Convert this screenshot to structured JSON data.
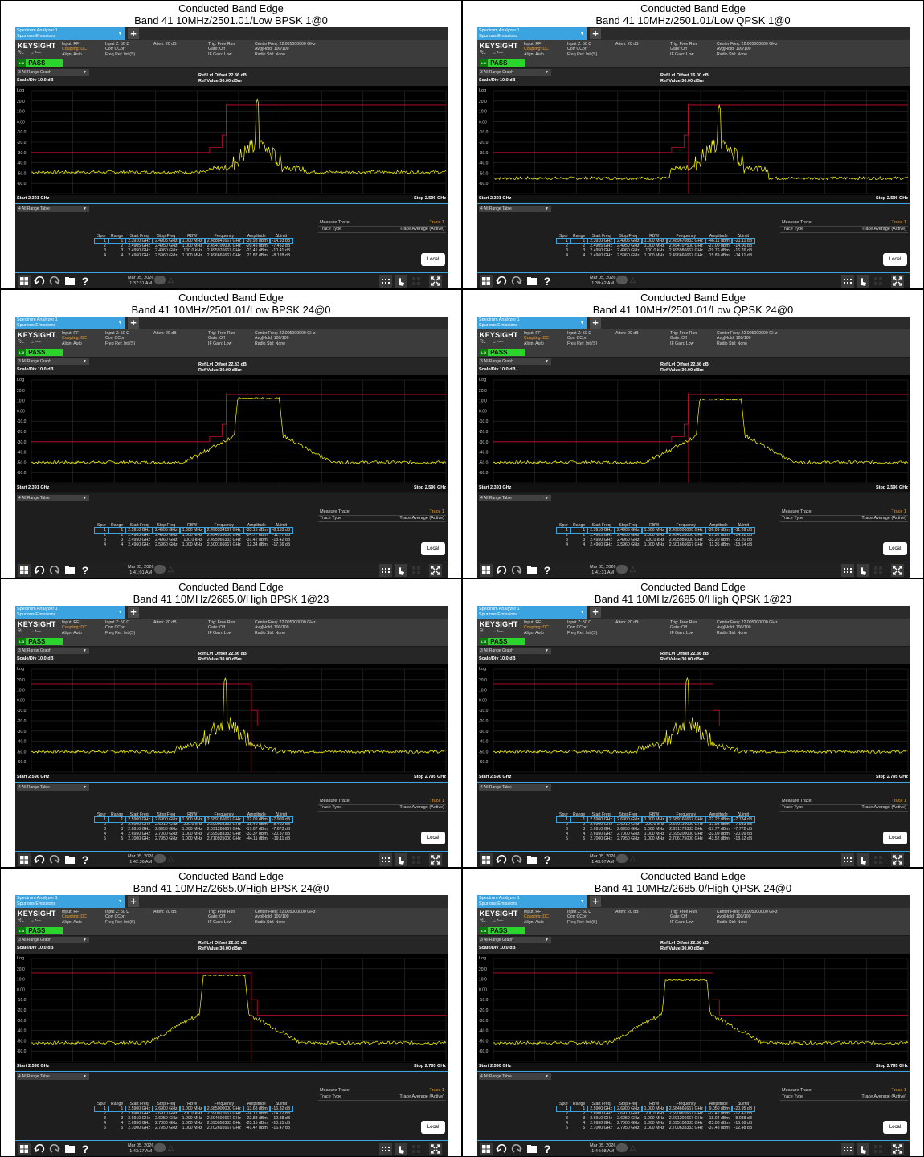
{
  "common": {
    "caption_title": "Conducted Band Edge",
    "tab_line1": "Spectrum Analyzer 1",
    "tab_line2": "Spurious Emissions",
    "plus_label": "+",
    "logo": "KEYSIGHT",
    "rl_label": "RL",
    "rl_arrow": "→•—",
    "pass_lxi": "LXI",
    "pass_label": "PASS",
    "hdr_col1": [
      "Input: RF",
      "Coupling: DC",
      "Align: Auto"
    ],
    "hdr_col2": [
      "Input Z: 50 Ω",
      "Corr CCorr",
      "Freq Ref: Int (S)"
    ],
    "hdr_col3": [
      "Atten: 20 dB"
    ],
    "hdr_col4": [
      "Trig: Free Run",
      "Gate: Off",
      "IF Gain: Low"
    ],
    "hdr_col5": [
      "Center Freq: 22.005000000 GHz",
      "Avg|Hold: 100/100",
      "Radio Std: None"
    ],
    "graph_dropdown": "3 All Range Graph",
    "scale_div": "Scale/Div 10.0 dB",
    "log_label": "Log",
    "y_ticks": [
      "20.0",
      "10.0",
      "0.00",
      "-10.0",
      "-20.0",
      "-30.0",
      "-40.0",
      "-50.0",
      "-60.0"
    ],
    "ref_value": "Ref Value 30.00 dBm",
    "table_dropdown": "4 All Range Table",
    "measure_trace_label": "Measure Trace",
    "measure_trace_value": "Trace 1",
    "trace_type_label": "Trace Type",
    "trace_type_value": "Trace Average (Active)",
    "spur_headers": [
      "Spur",
      "Range",
      "Start Freq",
      "Stop Freq",
      "RBW",
      "Frequency",
      "Amplitude",
      "ΔLimit"
    ],
    "local_button": "Local",
    "icons": [
      "windows-icon",
      "undo-icon",
      "redo-icon",
      "folder-icon",
      "help-icon",
      "keyboard-icon",
      "touch-icon",
      "grid-icon",
      "fullscreen-icon"
    ],
    "colors": {
      "trace": "#ffff00",
      "limit": "#c8102e",
      "pass": "#2bd52b",
      "accent": "#3aa3e0"
    }
  },
  "panels": [
    {
      "caption": "Band 41 10MHz/2501.01/Low BPSK 1@0",
      "ref_offset": "Ref Lvl Offset 22.86 dB",
      "start": "Start 2.391 GHz",
      "stop": "Stop 2.596 GHz",
      "date": "Mar 05, 2026",
      "time": "1:37:31 AM",
      "spurs": [
        [
          "1",
          "1",
          "2.3910 GHz",
          "2.4905 GHz",
          "1.000 MHz",
          "2.488841667 GHz",
          "-39.93 dBm",
          "-14.93 dB"
        ],
        [
          "2",
          "2",
          "2.4905 GHz",
          "2.4950 GHz",
          "1.000 MHz",
          "2.494700000 GHz",
          "-20.45 dBm",
          "-7.452 dB"
        ],
        [
          "3",
          "3",
          "2.4950 GHz",
          "2.4960 GHz",
          "100.0 kHz",
          "2.495976667 GHz",
          "-23.41 dBm",
          "-10.41 dB"
        ],
        [
          "4",
          "4",
          "2.4960 GHz",
          "2.5960 GHz",
          "1.000 MHz",
          "2.496666667 GHz",
          "21.87 dBm",
          "-8.128 dB"
        ]
      ],
      "chart_data": {
        "type": "line",
        "side": "low",
        "shape": "narrow",
        "peak_dbm": 21.87,
        "noise_dbm": -49,
        "x_range_ghz": [
          2.391,
          2.596
        ],
        "y_range_dbm": [
          -70,
          30
        ]
      }
    },
    {
      "caption": "Band 41 10MHz/2501.01/Low QPSK 1@0",
      "ref_offset": "Ref Lvl Offset 16.00 dB",
      "start": "Start 2.391 GHz",
      "stop": "Stop 2.596 GHz",
      "date": "Mar 05, 2026",
      "time": "1:39:42 AM",
      "spurs": [
        [
          "1",
          "1",
          "2.3910 GHz",
          "2.4905 GHz",
          "1.000 MHz",
          "2.489670833 GHz",
          "-46.11 dBm",
          "-21.11 dB"
        ],
        [
          "2",
          "2",
          "2.4905 GHz",
          "2.4950 GHz",
          "1.000 MHz",
          "2.494707500 GHz",
          "-27.00 dBm",
          "-14.00 dB"
        ],
        [
          "3",
          "3",
          "2.4950 GHz",
          "2.4960 GHz",
          "100.0 kHz",
          "2.495986667 GHz",
          "-29.76 dBm",
          "-16.76 dB"
        ],
        [
          "4",
          "4",
          "2.4960 GHz",
          "2.5960 GHz",
          "1.000 MHz",
          "2.496666667 GHz",
          "15.89 dBm",
          "-14.11 dB"
        ]
      ],
      "chart_data": {
        "type": "line",
        "side": "low",
        "shape": "narrow",
        "peak_dbm": 15.89,
        "noise_dbm": -55,
        "x_range_ghz": [
          2.391,
          2.596
        ],
        "y_range_dbm": [
          -70,
          30
        ]
      }
    },
    {
      "caption": "Band 41 10MHz/2501.01/Low BPSK 24@0",
      "ref_offset": "Ref Lvl Offset 22.83 dB",
      "start": "Start 2.391 GHz",
      "stop": "Stop 2.596 GHz",
      "date": "Mar 05, 2026",
      "time": "1:41:01 AM",
      "spurs": [
        [
          "1",
          "1",
          "2.3910 GHz",
          "2.4905 GHz",
          "1.000 MHz",
          "2.490334167 GHz",
          "-33.15 dBm",
          "-8.153 dB"
        ],
        [
          "2",
          "2",
          "2.4905 GHz",
          "2.4950 GHz",
          "1.000 MHz",
          "2.494910000 GHz",
          "-24.77 dBm",
          "-11.77 dB"
        ],
        [
          "3",
          "3",
          "2.4950 GHz",
          "2.4960 GHz",
          "100.0 kHz",
          "2.495966333 GHz",
          "-31.42 dBm",
          "-18.42 dB"
        ],
        [
          "4",
          "4",
          "2.4960 GHz",
          "2.5960 GHz",
          "1.000 MHz",
          "2.500166667 GHz",
          "12.34 dBm",
          "-17.66 dB"
        ]
      ],
      "chart_data": {
        "type": "line",
        "side": "low",
        "shape": "wide",
        "peak_dbm": 12.34,
        "noise_dbm": -50,
        "x_range_ghz": [
          2.391,
          2.596
        ],
        "y_range_dbm": [
          -70,
          30
        ]
      }
    },
    {
      "caption": "Band 41 10MHz/2501.01/Low QPSK 24@0",
      "ref_offset": "Ref Lvl Offset 22.86 dB",
      "start": "Start 2.391 GHz",
      "stop": "Stop 2.596 GHz",
      "date": "Mar 05, 2026",
      "time": "1:41:31 AM",
      "spurs": [
        [
          "1",
          "1",
          "2.3910 GHz",
          "2.4905 GHz",
          "1.000 MHz",
          "2.490500000 GHz",
          "-36.09 dBm",
          "-11.09 dB"
        ],
        [
          "2",
          "2",
          "2.4905 GHz",
          "2.4950 GHz",
          "1.000 MHz",
          "2.494235000 GHz",
          "-27.92 dBm",
          "-14.92 dB"
        ],
        [
          "3",
          "3",
          "2.4950 GHz",
          "2.4960 GHz",
          "100.0 kHz",
          "2.495985000 GHz",
          "-33.20 dBm",
          "-20.20 dB"
        ],
        [
          "4",
          "4",
          "2.4960 GHz",
          "2.5960 GHz",
          "1.000 MHz",
          "2.501666667 GHz",
          "11.36 dBm",
          "-18.64 dB"
        ]
      ],
      "chart_data": {
        "type": "line",
        "side": "low",
        "shape": "wide",
        "peak_dbm": 11.36,
        "noise_dbm": -50,
        "x_range_ghz": [
          2.391,
          2.596
        ],
        "y_range_dbm": [
          -70,
          30
        ]
      }
    },
    {
      "caption": "Band 41 10MHz/2685.0/High BPSK 1@23",
      "ref_offset": "Ref Lvl Offset 22.86 dB",
      "start": "Start 2.590 GHz",
      "stop": "Stop 2.795 GHz",
      "date": "Mar 05, 2026",
      "time": "1:42:36 AM",
      "spurs": [
        [
          "1",
          "1",
          "2.5900 GHz",
          "2.6900 GHz",
          "1.000 MHz",
          "2.689166667 GHz",
          "22.09 dBm",
          "-7.909 dB"
        ],
        [
          "2",
          "2",
          "2.6900 GHz",
          "2.6910 GHz",
          "200.0 kHz",
          "2.690003333 GHz",
          "-18.40 dBm",
          "-8.402 dB"
        ],
        [
          "3",
          "3",
          "2.6910 GHz",
          "2.6950 GHz",
          "1.000 MHz",
          "2.691286667 GHz",
          "-17.67 dBm",
          "-7.673 dB"
        ],
        [
          "4",
          "4",
          "2.6950 GHz",
          "2.7000 GHz",
          "1.000 MHz",
          "2.695383333 GHz",
          "-33.37 dBm",
          "-20.37 dB"
        ],
        [
          "5",
          "5",
          "2.7000 GHz",
          "2.7950 GHz",
          "1.000 MHz",
          "2.710925000 GHz",
          "-44.11 dBm",
          "-19.11 dB"
        ]
      ],
      "chart_data": {
        "type": "line",
        "side": "high",
        "shape": "narrow",
        "peak_dbm": 22.09,
        "noise_dbm": -50,
        "x_range_ghz": [
          2.59,
          2.795
        ],
        "y_range_dbm": [
          -70,
          30
        ]
      }
    },
    {
      "caption": "Band 41 10MHz/2685.0/High QPSK 1@23",
      "ref_offset": "Ref Lvl Offset 22.86 dB",
      "start": "Start 2.590 GHz",
      "stop": "Stop 2.795 GHz",
      "date": "Mar 05, 2026",
      "time": "1:43:07 AM",
      "spurs": [
        [
          "1",
          "1",
          "2.5900 GHz",
          "2.6900 GHz",
          "1.000 MHz",
          "2.689166667 GHz",
          "22.22 dBm",
          "-7.784 dB"
        ],
        [
          "2",
          "2",
          "2.6900 GHz",
          "2.6910 GHz",
          "200.0 kHz",
          "2.690110000 GHz",
          "-17.93 dBm",
          "-7.933 dB"
        ],
        [
          "3",
          "3",
          "2.6910 GHz",
          "2.6950 GHz",
          "1.000 MHz",
          "2.691173333 GHz",
          "-17.77 dBm",
          "-7.772 dB"
        ],
        [
          "4",
          "4",
          "2.6950 GHz",
          "2.7000 GHz",
          "1.000 MHz",
          "2.695200000 GHz",
          "-33.09 dBm",
          "-20.09 dB"
        ],
        [
          "5",
          "5",
          "2.7000 GHz",
          "2.7950 GHz",
          "1.000 MHz",
          "2.706175000 GHz",
          "-43.52 dBm",
          "-18.52 dB"
        ]
      ],
      "chart_data": {
        "type": "line",
        "side": "high",
        "shape": "narrow",
        "peak_dbm": 22.22,
        "noise_dbm": -50,
        "x_range_ghz": [
          2.59,
          2.795
        ],
        "y_range_dbm": [
          -70,
          30
        ]
      }
    },
    {
      "caption": "Band 41 10MHz/2685.0/High BPSK 24@0",
      "ref_offset": "Ref Lvl Offset 22.83 dB",
      "start": "Start 2.590 GHz",
      "stop": "Stop 2.795 GHz",
      "date": "Mar 05, 2026",
      "time": "1:43:37 AM",
      "spurs": [
        [
          "1",
          "1",
          "2.5900 GHz",
          "2.6900 GHz",
          "1.000 MHz",
          "2.685000000 GHz",
          "13.68 dBm",
          "-16.32 dB"
        ],
        [
          "2",
          "2",
          "2.6900 GHz",
          "2.6910 GHz",
          "200.0 kHz",
          "2.690021667 GHz",
          "-24.12 dBm",
          "-14.12 dB"
        ],
        [
          "3",
          "3",
          "2.6910 GHz",
          "2.6950 GHz",
          "1.000 MHz",
          "2.694606667 GHz",
          "-22.88 dBm",
          "-12.88 dB"
        ],
        [
          "4",
          "4",
          "2.6950 GHz",
          "2.7000 GHz",
          "1.000 MHz",
          "2.695058333 GHz",
          "-23.15 dBm",
          "-10.15 dB"
        ],
        [
          "5",
          "5",
          "2.7000 GHz",
          "2.7950 GHz",
          "1.000 MHz",
          "2.702691667 GHz",
          "-41.47 dBm",
          "-16.47 dB"
        ]
      ],
      "chart_data": {
        "type": "line",
        "side": "high",
        "shape": "wide",
        "peak_dbm": 13.68,
        "noise_dbm": -52,
        "x_range_ghz": [
          2.59,
          2.795
        ],
        "y_range_dbm": [
          -70,
          30
        ]
      }
    },
    {
      "caption": "Band 41 10MHz/2685.0/High QPSK 24@0",
      "ref_offset": "Ref Lvl Offset 22.86 dB",
      "start": "Start 2.590 GHz",
      "stop": "Stop 2.795 GHz",
      "date": "Mar 05, 2026",
      "time": "1:44:08 AM",
      "spurs": [
        [
          "1",
          "1",
          "2.5900 GHz",
          "2.6900 GHz",
          "1.000 MHz",
          "2.684666667 GHz",
          "9.050 dBm",
          "-20.95 dB"
        ],
        [
          "2",
          "2",
          "2.6900 GHz",
          "2.6910 GHz",
          "200.0 kHz",
          "2.690001667 GHz",
          "-22.42 dBm",
          "-12.42 dB"
        ],
        [
          "3",
          "3",
          "2.6910 GHz",
          "2.6950 GHz",
          "1.000 MHz",
          "2.691206667 GHz",
          "-18.04 dBm",
          "-8.038 dB"
        ],
        [
          "4",
          "4",
          "2.6950 GHz",
          "2.7000 GHz",
          "1.000 MHz",
          "2.695108333 GHz",
          "-23.08 dBm",
          "-10.08 dB"
        ],
        [
          "5",
          "5",
          "2.7000 GHz",
          "2.7950 GHz",
          "1.000 MHz",
          "2.700633333 GHz",
          "-37.48 dBm",
          "-12.48 dB"
        ]
      ],
      "chart_data": {
        "type": "line",
        "side": "high",
        "shape": "wide",
        "peak_dbm": 9.05,
        "noise_dbm": -52,
        "x_range_ghz": [
          2.59,
          2.795
        ],
        "y_range_dbm": [
          -70,
          30
        ]
      }
    }
  ]
}
